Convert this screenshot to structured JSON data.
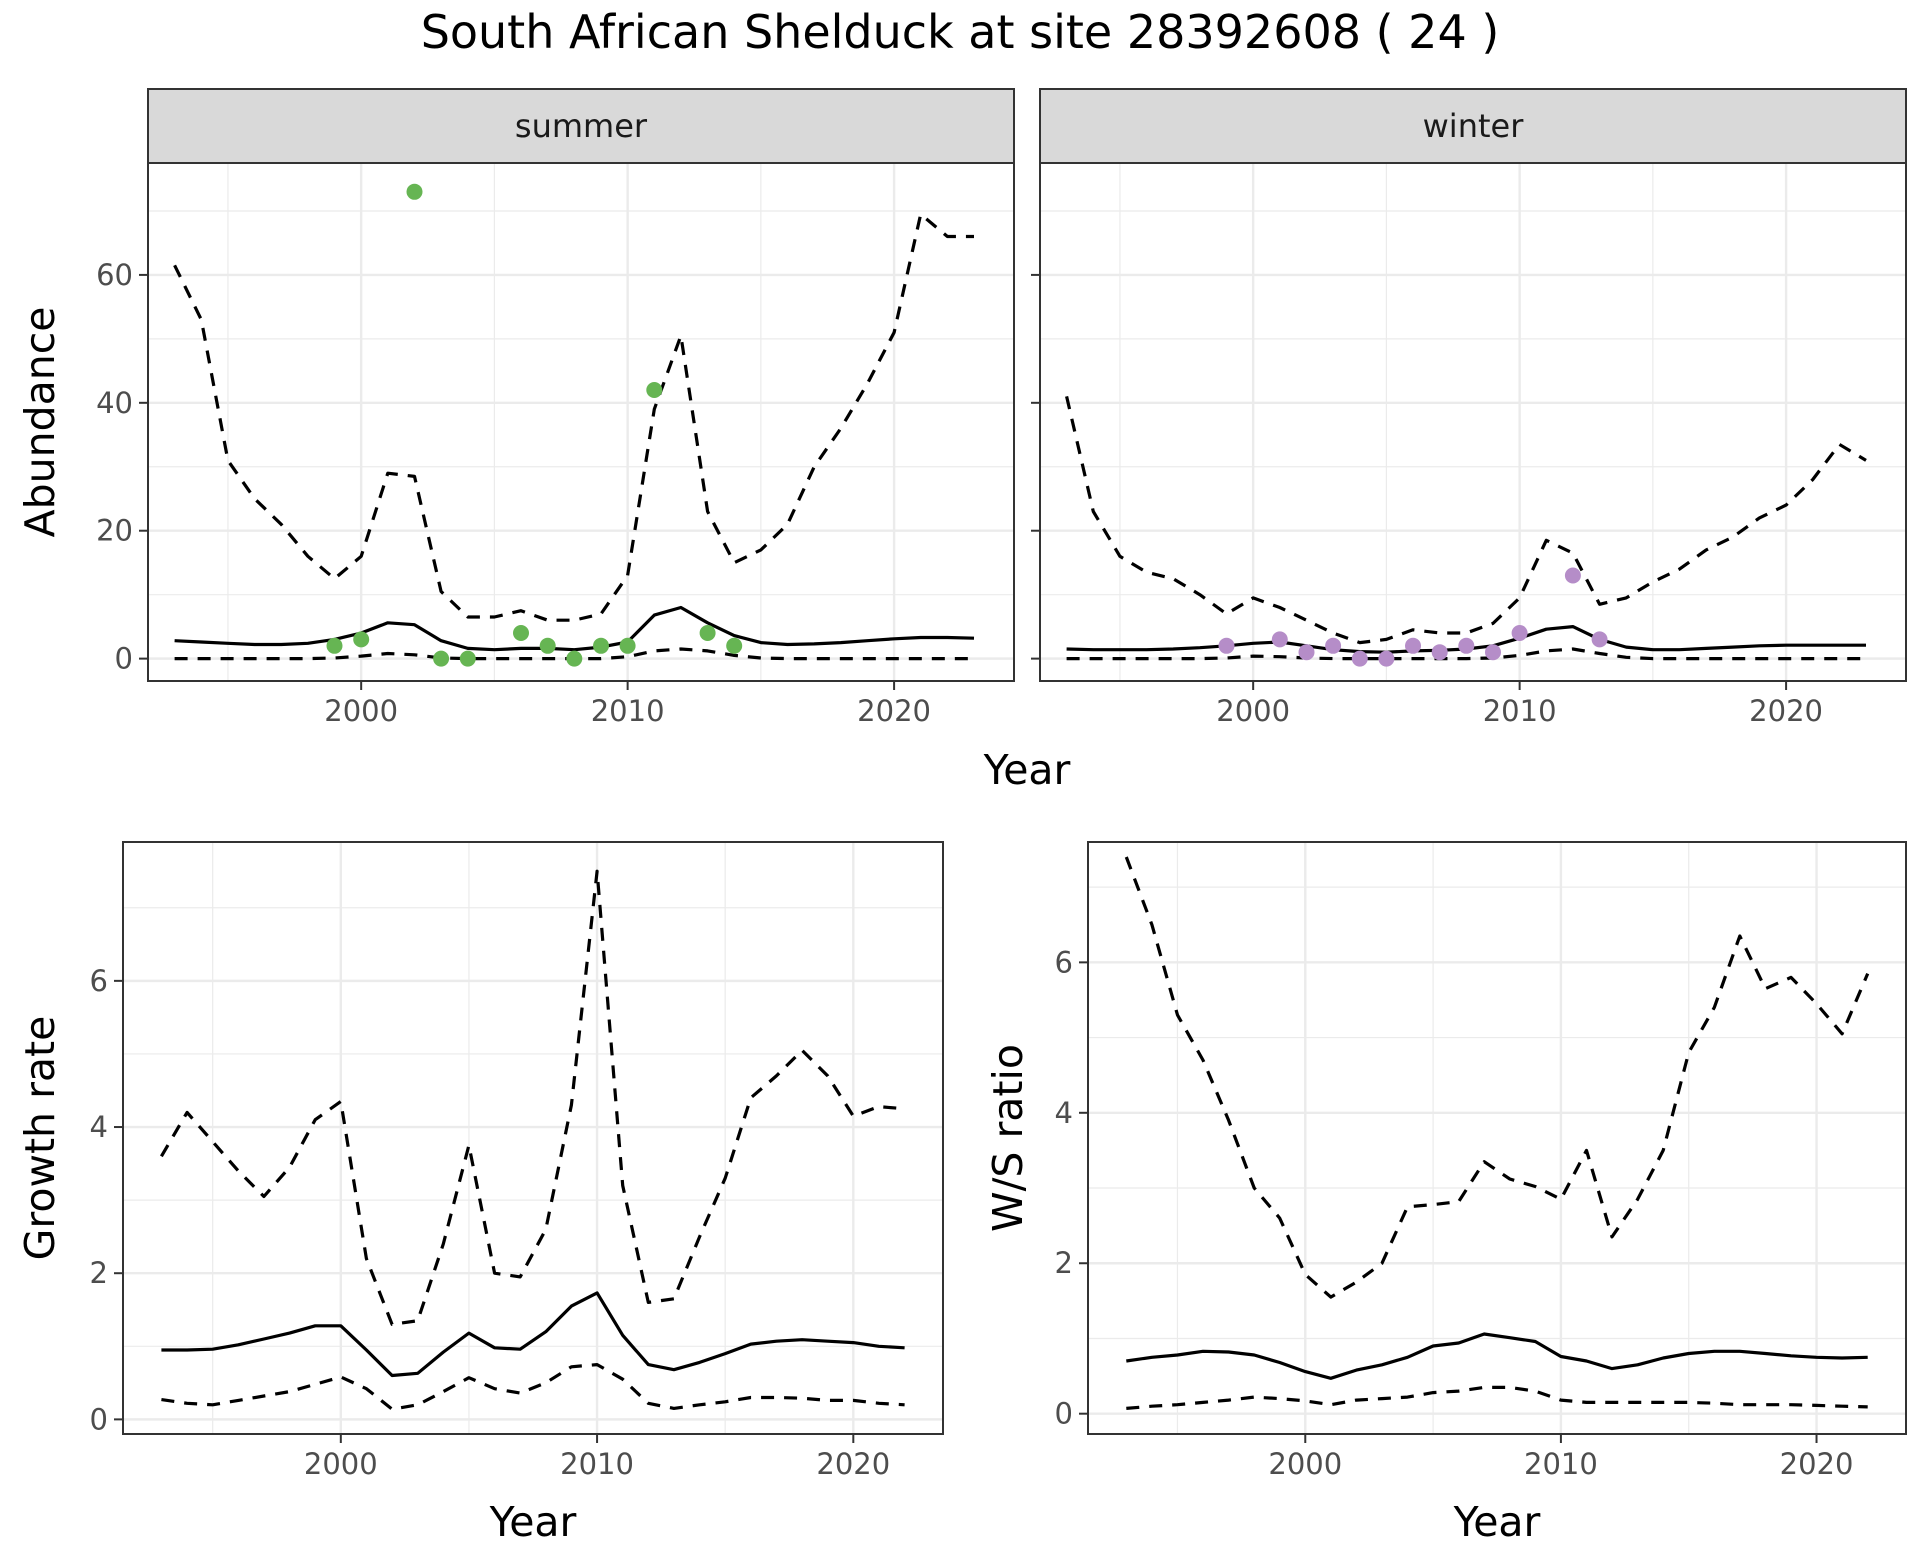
{
  "title": "South African Shelduck at site 28392608 ( 24 )",
  "colors": {
    "summer_points": "#66b553",
    "winter_points": "#b58dc8",
    "lines": "#000000",
    "strip_fill": "#d9d9d9"
  },
  "chart_data": [
    {
      "type": "line",
      "facet": "summer",
      "xlabel": "Year",
      "ylabel": "Abundance",
      "xlim": [
        1992,
        2024.5
      ],
      "ylim": [
        -3.5,
        77.5
      ],
      "xticks": [
        2000,
        2010,
        2020
      ],
      "yticks": [
        0,
        20,
        40,
        60
      ],
      "grid": true,
      "series": [
        {
          "role": "mean",
          "x": [
            1993,
            1994,
            1995,
            1996,
            1997,
            1998,
            1999,
            2000,
            2001,
            2002,
            2003,
            2004,
            2005,
            2006,
            2007,
            2008,
            2009,
            2010,
            2011,
            2012,
            2013,
            2014,
            2015,
            2016,
            2017,
            2018,
            2019,
            2020,
            2021,
            2022,
            2023
          ],
          "y": [
            2.8,
            2.6,
            2.4,
            2.2,
            2.2,
            2.4,
            3.0,
            4.0,
            5.6,
            5.3,
            2.8,
            1.6,
            1.4,
            1.6,
            1.6,
            1.4,
            1.8,
            2.6,
            6.8,
            8.0,
            5.6,
            3.6,
            2.5,
            2.2,
            2.3,
            2.5,
            2.8,
            3.1,
            3.3,
            3.3,
            3.2
          ]
        },
        {
          "role": "upper",
          "x": [
            1993,
            1994,
            1995,
            1996,
            1997,
            1998,
            1999,
            2000,
            2001,
            2002,
            2003,
            2004,
            2005,
            2006,
            2007,
            2008,
            2009,
            2010,
            2011,
            2012,
            2013,
            2014,
            2015,
            2016,
            2017,
            2018,
            2019,
            2020,
            2021,
            2022,
            2023
          ],
          "y": [
            61.5,
            53,
            31,
            25,
            21,
            16,
            12.5,
            16,
            29,
            28.5,
            10.5,
            6.5,
            6.5,
            7.5,
            6,
            6,
            7,
            13,
            39,
            50.5,
            23,
            15,
            17,
            21,
            30,
            36,
            43,
            51,
            69.5,
            66,
            66
          ]
        },
        {
          "role": "lower",
          "x": [
            1993,
            1994,
            1995,
            1996,
            1997,
            1998,
            1999,
            2000,
            2001,
            2002,
            2003,
            2004,
            2005,
            2006,
            2007,
            2008,
            2009,
            2010,
            2011,
            2012,
            2013,
            2014,
            2015,
            2016,
            2017,
            2018,
            2019,
            2020,
            2021,
            2022,
            2023
          ],
          "y": [
            0,
            0,
            0,
            0,
            0,
            0,
            0.1,
            0.4,
            0.8,
            0.6,
            0.1,
            0,
            0,
            0,
            0,
            0,
            0,
            0.3,
            1.2,
            1.5,
            1.2,
            0.5,
            0.1,
            0,
            0,
            0,
            0,
            0,
            0,
            0,
            0
          ]
        }
      ],
      "points": {
        "x": [
          1999,
          2000,
          2002,
          2003,
          2004,
          2006,
          2007,
          2008,
          2009,
          2010,
          2011,
          2013,
          2014
        ],
        "y": [
          2,
          3,
          73,
          0,
          0,
          4,
          2,
          0,
          2,
          2,
          42,
          4,
          2
        ]
      }
    },
    {
      "type": "line",
      "facet": "winter",
      "xlabel": "Year",
      "ylabel": "",
      "xlim": [
        1992,
        2024.5
      ],
      "ylim": [
        -3.5,
        77.5
      ],
      "xticks": [
        2000,
        2010,
        2020
      ],
      "yticks": [
        0,
        20,
        40,
        60
      ],
      "grid": true,
      "series": [
        {
          "role": "mean",
          "x": [
            1993,
            1994,
            1995,
            1996,
            1997,
            1998,
            1999,
            2000,
            2001,
            2002,
            2003,
            2004,
            2005,
            2006,
            2007,
            2008,
            2009,
            2010,
            2011,
            2012,
            2013,
            2014,
            2015,
            2016,
            2017,
            2018,
            2019,
            2020,
            2021,
            2022,
            2023
          ],
          "y": [
            1.5,
            1.4,
            1.4,
            1.4,
            1.5,
            1.7,
            2.0,
            2.4,
            2.6,
            2.0,
            1.4,
            1.1,
            1.0,
            1.2,
            1.3,
            1.5,
            2.0,
            3.2,
            4.6,
            5.0,
            3.0,
            1.8,
            1.4,
            1.4,
            1.6,
            1.8,
            2.0,
            2.1,
            2.1,
            2.1,
            2.1
          ]
        },
        {
          "role": "upper",
          "x": [
            1993,
            1994,
            1995,
            1996,
            1997,
            1998,
            1999,
            2000,
            2001,
            2002,
            2003,
            2004,
            2005,
            2006,
            2007,
            2008,
            2009,
            2010,
            2011,
            2012,
            2013,
            2014,
            2015,
            2016,
            2017,
            2018,
            2019,
            2020,
            2021,
            2022,
            2023
          ],
          "y": [
            41,
            23,
            16,
            13.5,
            12.5,
            10,
            7,
            9.5,
            8,
            6,
            4,
            2.5,
            3,
            4.5,
            4,
            4,
            5.5,
            9.5,
            18.5,
            16.5,
            8.5,
            9.5,
            12,
            14,
            17,
            19,
            22,
            24,
            28,
            33.5,
            31
          ]
        },
        {
          "role": "lower",
          "x": [
            1993,
            1994,
            1995,
            1996,
            1997,
            1998,
            1999,
            2000,
            2001,
            2002,
            2003,
            2004,
            2005,
            2006,
            2007,
            2008,
            2009,
            2010,
            2011,
            2012,
            2013,
            2014,
            2015,
            2016,
            2017,
            2018,
            2019,
            2020,
            2021,
            2022,
            2023
          ],
          "y": [
            0,
            0,
            0,
            0,
            0,
            0,
            0.1,
            0.4,
            0.3,
            0.1,
            0,
            0,
            0,
            0,
            0,
            0,
            0.1,
            0.5,
            1.2,
            1.5,
            0.8,
            0.2,
            0,
            0,
            0,
            0,
            0,
            0,
            0,
            0,
            0
          ]
        }
      ],
      "points": {
        "x": [
          1999,
          2001,
          2002,
          2003,
          2004,
          2005,
          2006,
          2007,
          2008,
          2009,
          2010,
          2012,
          2013
        ],
        "y": [
          2,
          3,
          1,
          2,
          0,
          0,
          2,
          1,
          2,
          1,
          4,
          13,
          3
        ]
      }
    },
    {
      "type": "line",
      "facet": "",
      "xlabel": "Year",
      "ylabel": "Growth rate",
      "xlim": [
        1991.5,
        2023.5
      ],
      "ylim": [
        -0.2,
        7.9
      ],
      "xticks": [
        2000,
        2010,
        2020
      ],
      "yticks": [
        0,
        2,
        4,
        6
      ],
      "grid": true,
      "series": [
        {
          "role": "mean",
          "x": [
            1993,
            1994,
            1995,
            1996,
            1997,
            1998,
            1999,
            2000,
            2001,
            2002,
            2003,
            2004,
            2005,
            2006,
            2007,
            2008,
            2009,
            2010,
            2011,
            2012,
            2013,
            2014,
            2015,
            2016,
            2017,
            2018,
            2019,
            2020,
            2021,
            2022
          ],
          "y": [
            0.95,
            0.95,
            0.96,
            1.02,
            1.1,
            1.18,
            1.28,
            1.28,
            0.95,
            0.6,
            0.63,
            0.92,
            1.18,
            0.98,
            0.96,
            1.2,
            1.55,
            1.73,
            1.15,
            0.75,
            0.68,
            0.78,
            0.9,
            1.03,
            1.07,
            1.09,
            1.07,
            1.05,
            1.0,
            0.98
          ]
        },
        {
          "role": "upper",
          "x": [
            1993,
            1994,
            1995,
            1996,
            1997,
            1998,
            1999,
            2000,
            2001,
            2002,
            2003,
            2004,
            2005,
            2006,
            2007,
            2008,
            2009,
            2010,
            2011,
            2012,
            2013,
            2014,
            2015,
            2016,
            2017,
            2018,
            2019,
            2020,
            2021,
            2022
          ],
          "y": [
            3.6,
            4.2,
            3.8,
            3.4,
            3.05,
            3.45,
            4.1,
            4.35,
            2.2,
            1.3,
            1.35,
            2.4,
            3.75,
            2.0,
            1.95,
            2.6,
            4.3,
            7.5,
            3.2,
            1.6,
            1.65,
            2.5,
            3.3,
            4.4,
            4.7,
            5.05,
            4.7,
            4.15,
            4.28,
            4.25
          ]
        },
        {
          "role": "lower",
          "x": [
            1993,
            1994,
            1995,
            1996,
            1997,
            1998,
            1999,
            2000,
            2001,
            2002,
            2003,
            2004,
            2005,
            2006,
            2007,
            2008,
            2009,
            2010,
            2011,
            2012,
            2013,
            2014,
            2015,
            2016,
            2017,
            2018,
            2019,
            2020,
            2021,
            2022
          ],
          "y": [
            0.27,
            0.22,
            0.2,
            0.26,
            0.32,
            0.38,
            0.48,
            0.58,
            0.42,
            0.14,
            0.2,
            0.38,
            0.57,
            0.42,
            0.36,
            0.5,
            0.72,
            0.75,
            0.55,
            0.22,
            0.15,
            0.2,
            0.24,
            0.3,
            0.3,
            0.29,
            0.26,
            0.26,
            0.22,
            0.2
          ]
        }
      ]
    },
    {
      "type": "line",
      "facet": "",
      "xlabel": "Year",
      "ylabel": "W/S ratio",
      "xlim": [
        1991.5,
        2023.5
      ],
      "ylim": [
        -0.27,
        7.6
      ],
      "xticks": [
        2000,
        2010,
        2020
      ],
      "yticks": [
        0,
        2,
        4,
        6
      ],
      "grid": true,
      "series": [
        {
          "role": "mean",
          "x": [
            1993,
            1994,
            1995,
            1996,
            1997,
            1998,
            1999,
            2000,
            2001,
            2002,
            2003,
            2004,
            2005,
            2006,
            2007,
            2008,
            2009,
            2010,
            2011,
            2012,
            2013,
            2014,
            2015,
            2016,
            2017,
            2018,
            2019,
            2020,
            2021,
            2022
          ],
          "y": [
            0.7,
            0.75,
            0.78,
            0.83,
            0.82,
            0.78,
            0.68,
            0.56,
            0.47,
            0.58,
            0.65,
            0.75,
            0.9,
            0.94,
            1.06,
            1.01,
            0.96,
            0.76,
            0.7,
            0.6,
            0.65,
            0.74,
            0.8,
            0.83,
            0.83,
            0.8,
            0.77,
            0.75,
            0.74,
            0.75
          ]
        },
        {
          "role": "upper",
          "x": [
            1993,
            1994,
            1995,
            1996,
            1997,
            1998,
            1999,
            2000,
            2001,
            2002,
            2003,
            2004,
            2005,
            2006,
            2007,
            2008,
            2009,
            2010,
            2011,
            2012,
            2013,
            2014,
            2015,
            2016,
            2017,
            2018,
            2019,
            2020,
            2021,
            2022
          ],
          "y": [
            7.4,
            6.5,
            5.3,
            4.7,
            3.9,
            3.0,
            2.6,
            1.85,
            1.55,
            1.75,
            2.0,
            2.75,
            2.78,
            2.82,
            3.35,
            3.12,
            3.02,
            2.85,
            3.5,
            2.35,
            2.85,
            3.5,
            4.8,
            5.4,
            6.35,
            5.65,
            5.8,
            5.45,
            5.05,
            5.85
          ]
        },
        {
          "role": "lower",
          "x": [
            1993,
            1994,
            1995,
            1996,
            1997,
            1998,
            1999,
            2000,
            2001,
            2002,
            2003,
            2004,
            2005,
            2006,
            2007,
            2008,
            2009,
            2010,
            2011,
            2012,
            2013,
            2014,
            2015,
            2016,
            2017,
            2018,
            2019,
            2020,
            2021,
            2022
          ],
          "y": [
            0.07,
            0.1,
            0.12,
            0.15,
            0.18,
            0.22,
            0.2,
            0.17,
            0.12,
            0.18,
            0.2,
            0.22,
            0.28,
            0.3,
            0.35,
            0.35,
            0.3,
            0.18,
            0.15,
            0.15,
            0.15,
            0.15,
            0.15,
            0.14,
            0.12,
            0.12,
            0.12,
            0.11,
            0.1,
            0.09
          ]
        }
      ]
    }
  ]
}
